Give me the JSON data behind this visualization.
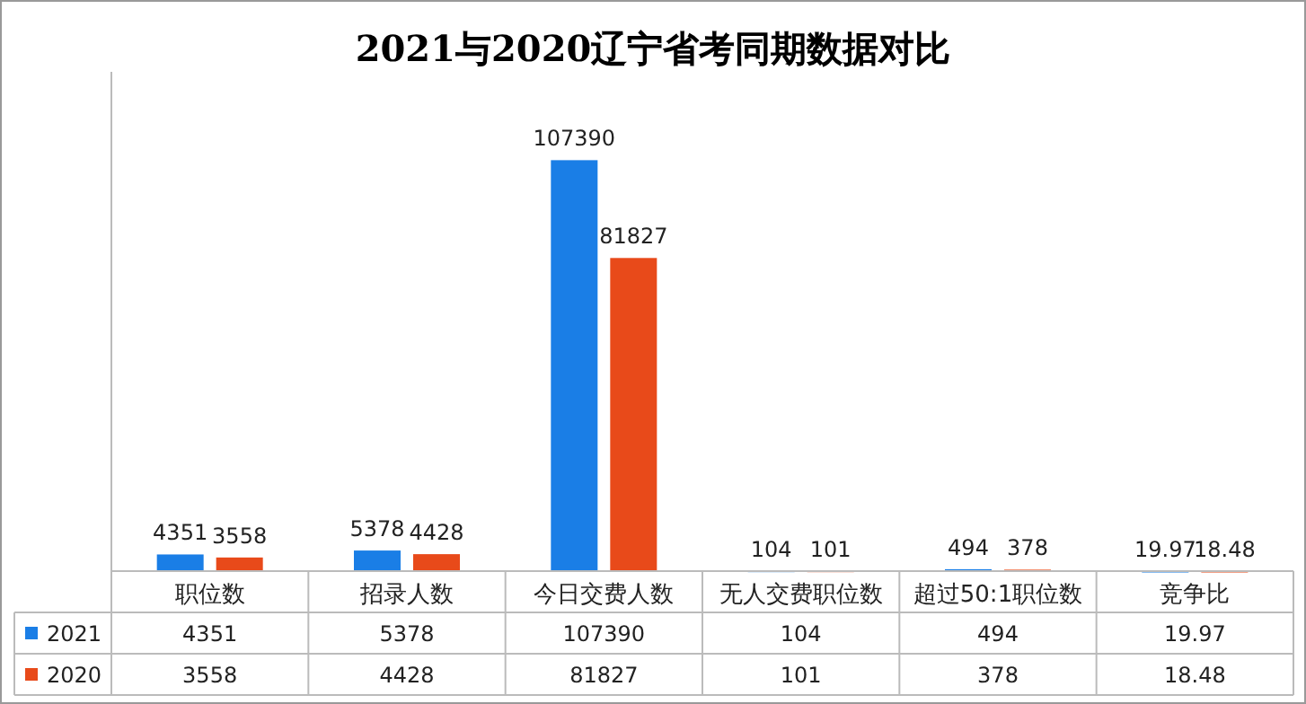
{
  "chart_data": {
    "type": "bar",
    "title": "2021与2020辽宁省考同期数据对比",
    "categories": [
      "职位数",
      "招录人数",
      "今日交费人数",
      "无人交费职位数",
      "超过50:1职位数",
      "竞争比"
    ],
    "series": [
      {
        "name": "2021",
        "color": "#1a7ee6",
        "values": [
          4351,
          5378,
          107390,
          104,
          494,
          19.97
        ],
        "value_labels": [
          "4351",
          "5378",
          "107390",
          "104",
          "494",
          "19.97"
        ]
      },
      {
        "name": "2020",
        "color": "#e84a1a",
        "values": [
          3558,
          4428,
          81827,
          101,
          378,
          18.48
        ],
        "value_labels": [
          "3558",
          "4428",
          "81827",
          "101",
          "378",
          "18.48"
        ]
      }
    ],
    "annotations": [
      "4351",
      "5378",
      "107390",
      "104",
      "494",
      "19.97",
      "3558",
      "4428",
      "81827",
      "101",
      "378",
      "18.48"
    ],
    "legend": "bottom"
  }
}
